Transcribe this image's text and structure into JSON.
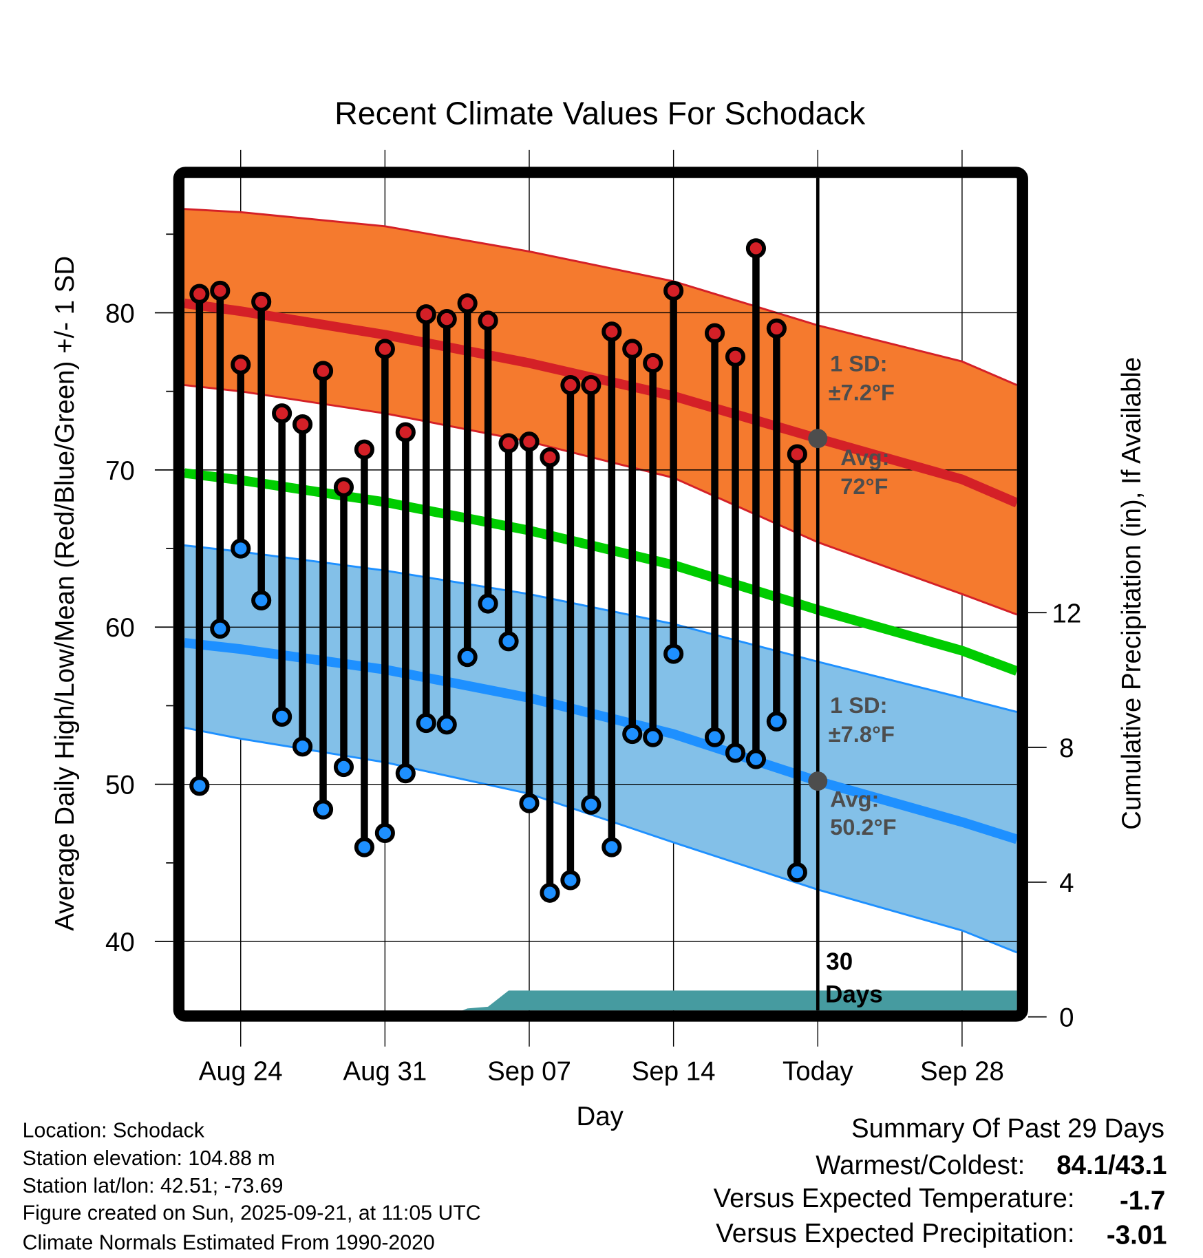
{
  "chart_data": {
    "type": "line",
    "title": "Recent Climate Values For Schodack",
    "xlabel": "Day",
    "ylabel": "Average Daily High/Low/Mean (Red/Blue/Green) +/- 1 SD",
    "y2label": "Cumulative Precipitation (in), If Available",
    "x_unit": "days since Aug 21",
    "xlim": [
      0.27,
      40.66
    ],
    "ylim": [
      35.6,
      88.6
    ],
    "y2lim": [
      0,
      24.9
    ],
    "yticks": [
      40,
      50,
      60,
      70,
      80
    ],
    "yticks_minor": [
      45,
      55,
      65,
      75,
      85
    ],
    "y2ticks": [
      0,
      4,
      8,
      12
    ],
    "xticks": [
      {
        "day": 3,
        "label": "Aug 24"
      },
      {
        "day": 10,
        "label": "Aug 31"
      },
      {
        "day": 17,
        "label": "Sep 07"
      },
      {
        "day": 24,
        "label": "Sep 14"
      },
      {
        "day": 31,
        "label": "Today"
      },
      {
        "day": 38,
        "label": "Sep 28"
      }
    ],
    "grid": true,
    "observed": {
      "days": [
        1,
        2,
        3,
        4,
        5,
        6,
        7,
        8,
        9,
        10,
        11,
        12,
        13,
        14,
        15,
        16,
        17,
        18,
        19,
        20,
        21,
        22,
        23,
        24,
        26,
        27,
        28,
        29,
        30
      ],
      "high": [
        81.2,
        81.4,
        76.7,
        80.7,
        73.6,
        72.9,
        76.3,
        68.9,
        71.3,
        77.7,
        72.4,
        79.9,
        79.6,
        80.6,
        79.5,
        71.7,
        71.8,
        70.8,
        75.4,
        75.4,
        78.8,
        77.7,
        76.8,
        81.4,
        78.7,
        77.2,
        84.1,
        79.0,
        71.0
      ],
      "low": [
        49.9,
        59.9,
        65.0,
        61.7,
        54.3,
        52.4,
        48.4,
        51.1,
        46.0,
        46.9,
        50.7,
        53.9,
        53.8,
        58.1,
        61.5,
        59.1,
        48.8,
        43.1,
        43.9,
        48.7,
        46.0,
        53.2,
        53.0,
        58.3,
        53.0,
        52.0,
        51.6,
        54.0,
        44.4
      ]
    },
    "normals": {
      "days": [
        0.27,
        3,
        10,
        17,
        24,
        31,
        38,
        40.66
      ],
      "high_avg": [
        80.6,
        80.1,
        78.6,
        76.8,
        74.7,
        72.0,
        69.4,
        67.9
      ],
      "high_upper": [
        86.6,
        86.4,
        85.5,
        83.9,
        82.0,
        79.2,
        76.9,
        75.4
      ],
      "high_lower": [
        75.4,
        75.0,
        73.6,
        71.8,
        69.5,
        65.4,
        62.1,
        60.8
      ],
      "low_avg": [
        59.0,
        58.6,
        57.3,
        55.5,
        53.2,
        50.2,
        47.6,
        46.5
      ],
      "low_upper": [
        65.2,
        64.8,
        63.6,
        62.1,
        60.2,
        57.8,
        55.5,
        54.6
      ],
      "low_lower": [
        53.6,
        52.9,
        51.4,
        49.4,
        46.3,
        43.3,
        40.7,
        39.3
      ],
      "mean_avg": [
        69.8,
        69.35,
        67.95,
        66.15,
        63.95,
        61.1,
        58.5,
        57.2
      ]
    },
    "precip": {
      "days": [
        0.27,
        13,
        14,
        15,
        16,
        40.66
      ],
      "values": [
        0,
        0,
        0.25,
        0.3,
        0.78,
        0.78
      ]
    },
    "today_day": 31,
    "today_high_avg": 72.0,
    "today_low_avg": 50.2,
    "annotations": {
      "high_sd_1": "1 SD:",
      "high_sd_2": "±7.2°F",
      "high_avg_1": "Avg:",
      "high_avg_2": "72°F",
      "low_sd_1": "1 SD:",
      "low_sd_2": "±7.8°F",
      "low_avg_1": "Avg:",
      "low_avg_2": "50.2°F",
      "days_1": "30",
      "days_2": "Days"
    },
    "colors": {
      "high_band": "#F57A2E",
      "high_line": "#D42027",
      "low_band": "#83C0E8",
      "low_line": "#1E90FF",
      "mean_line": "#00CC00",
      "precip": "#469BA0",
      "annot": "#4D4D4D"
    }
  },
  "footer": {
    "location": "Location: Schodack",
    "elevation": "Station elevation: 104.88 m",
    "latlon": "Station lat/lon: 42.51; -73.69",
    "created": "Figure created on Sun, 2025-09-21, at 11:05 UTC",
    "normals": "Climate Normals Estimated From 1990-2020"
  },
  "summary": {
    "title": "Summary Of Past 29 Days",
    "warm_cold_label": "Warmest/Coldest:",
    "warm_cold_value": "84.1/43.1",
    "temp_label": "Versus Expected Temperature:",
    "temp_value": "-1.7",
    "temp_color": "#1E90FF",
    "precip_label": "Versus Expected Precipitation:",
    "precip_value": "-3.01",
    "precip_color": "#A0522D"
  }
}
